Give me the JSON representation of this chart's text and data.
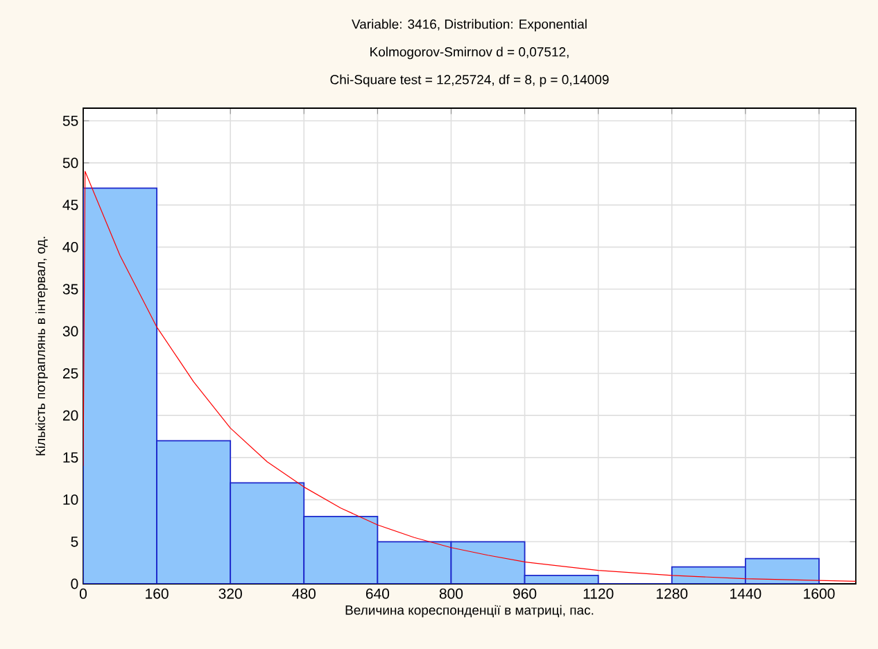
{
  "chart_data": {
    "type": "histogram",
    "title": "Variable: 3416, Distribution: Exponential",
    "subtitle": "Kolmogorov-Smirnov d = 0,07512,",
    "annotations": [
      "Chi-Square test = 12,25724, df = 8, p = 0,14009"
    ],
    "xlabel": "Величина кореспонденції в матриці, пас.",
    "ylabel": "Кількість потраплянь в інтервал, од.",
    "bins": [
      0,
      160,
      320,
      480,
      640,
      800,
      960,
      1120,
      1280,
      1440,
      1600
    ],
    "values": [
      47,
      17,
      12,
      8,
      5,
      5,
      1,
      0,
      2,
      3
    ],
    "color": "#8ec5fb",
    "series": [
      {
        "type": "line",
        "color": "#ff0000",
        "x": [
          0,
          4,
          80,
          160,
          240,
          320,
          400,
          480,
          560,
          640,
          720,
          800,
          880,
          960,
          1120,
          1280,
          1440,
          1600,
          1680
        ],
        "values": [
          14,
          49,
          39,
          30.5,
          24,
          18.5,
          14.5,
          11.5,
          9,
          7,
          5.5,
          4.3,
          3.4,
          2.6,
          1.6,
          1,
          0.6,
          0.4,
          0.3
        ]
      }
    ],
    "xlim": [
      0,
      1680
    ],
    "ylim": [
      0,
      56.5
    ],
    "xticks": [
      0,
      160,
      320,
      480,
      640,
      800,
      960,
      1120,
      1280,
      1440,
      1600
    ],
    "yticks": [
      0,
      5,
      10,
      15,
      20,
      25,
      30,
      35,
      40,
      45,
      50,
      55
    ],
    "grid": true
  }
}
